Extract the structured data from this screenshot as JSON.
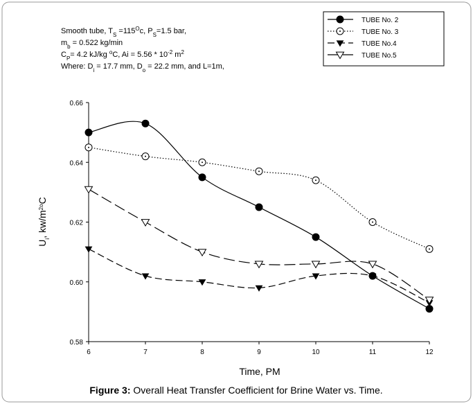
{
  "chart_data": {
    "type": "line",
    "annotation": [
      [
        {
          "text": "Smooth tube, T"
        },
        {
          "text": "S",
          "shift": "sub"
        },
        {
          "text": " =115"
        },
        {
          "text": "O",
          "shift": "super"
        },
        {
          "text": "c, P"
        },
        {
          "text": "S",
          "shift": "sub"
        },
        {
          "text": "=1.5 bar,"
        }
      ],
      [
        {
          "text": "m"
        },
        {
          "text": "b",
          "shift": "sub"
        },
        {
          "text": " = 0.522 kg/min"
        }
      ],
      [
        {
          "text": "C"
        },
        {
          "text": "P",
          "shift": "sub"
        },
        {
          "text": "= 4.2 kJ/kg "
        },
        {
          "text": "o",
          "shift": "super"
        },
        {
          "text": "C, Ai = 5.56 * 10"
        },
        {
          "text": "-2",
          "shift": "super"
        },
        {
          "text": " m"
        },
        {
          "text": "2",
          "shift": "super"
        }
      ],
      [
        {
          "text": "Where: D"
        },
        {
          "text": "i",
          "shift": "sub"
        },
        {
          "text": " = 17.7 mm, D"
        },
        {
          "text": "o",
          "shift": "sub"
        },
        {
          "text": " = 22.2 mm, and L=1m,"
        }
      ]
    ],
    "y_label": [
      {
        "text": "U"
      },
      {
        "text": "i",
        "shift": "sub"
      },
      {
        "text": ", kw/m"
      },
      {
        "text": "2o",
        "shift": "super"
      },
      {
        "text": "C"
      }
    ],
    "x_label": "Time, PM",
    "caption_label": "Figure 3:",
    "caption_text": " Overall Heat Transfer Coefficient for Brine Water vs. Time.",
    "x": [
      6,
      7,
      8,
      9,
      10,
      11,
      12
    ],
    "xlim": [
      6,
      12
    ],
    "xticks": [
      6,
      7,
      8,
      9,
      10,
      11,
      12
    ],
    "ylim": [
      0.58,
      0.66
    ],
    "yticks": [
      {
        "value": 0.58,
        "label": "0.58"
      },
      {
        "value": 0.6,
        "label": "0.60"
      },
      {
        "value": 0.62,
        "label": "0.62"
      },
      {
        "value": 0.64,
        "label": "0.64"
      },
      {
        "value": 0.66,
        "label": "0.66"
      }
    ],
    "legend_position": "upper right",
    "series": [
      {
        "name": "TUBE No. 2",
        "color": "#000000",
        "marker": "filled-circle",
        "dash": "solid",
        "values": [
          0.65,
          0.653,
          0.635,
          0.625,
          0.615,
          0.602,
          0.591
        ]
      },
      {
        "name": "TUBE No. 3",
        "color": "#000000",
        "marker": "open-circle",
        "dash": "dotted",
        "values": [
          0.645,
          0.642,
          0.64,
          0.637,
          0.634,
          0.62,
          0.611
        ]
      },
      {
        "name": "TUBE No.4",
        "color": "#000000",
        "marker": "filled-triangle-down",
        "dash": "dashed",
        "values": [
          0.611,
          0.602,
          0.6,
          0.598,
          0.602,
          0.602,
          0.593
        ]
      },
      {
        "name": "TUBE No.5",
        "color": "#000000",
        "marker": "open-triangle-down",
        "dash": "long-dashed",
        "values": [
          0.631,
          0.62,
          0.61,
          0.606,
          0.606,
          0.606,
          0.594
        ]
      }
    ]
  }
}
